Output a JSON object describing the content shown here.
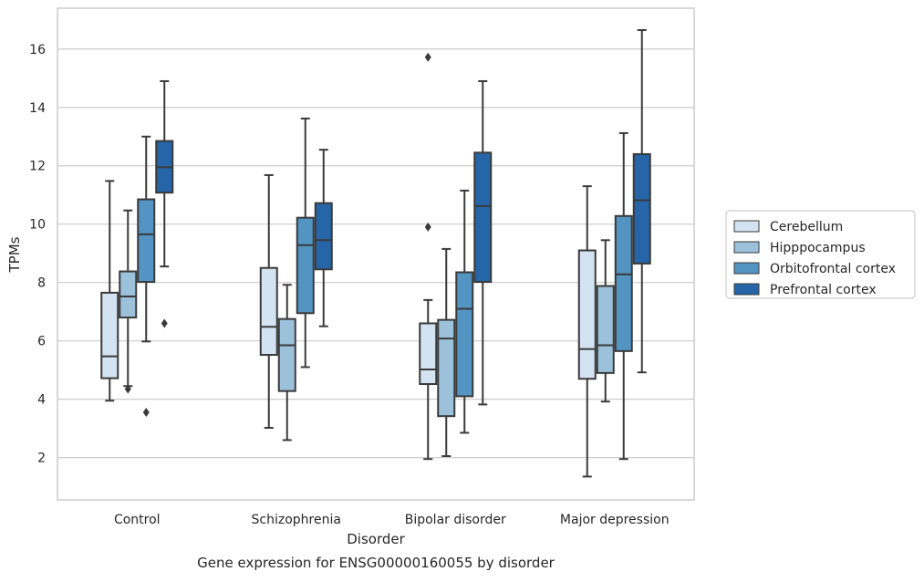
{
  "chart_data": {
    "type": "box",
    "title": "",
    "caption": "Gene expression for ENSG00000160055 by disorder",
    "xlabel": "Disorder",
    "ylabel": "TPMs",
    "ylim": [
      0.55,
      17.4
    ],
    "yticks": [
      2,
      4,
      6,
      8,
      10,
      12,
      14,
      16
    ],
    "grid": true,
    "legend_position": "right",
    "categories": [
      "Control",
      "Schizophrenia",
      "Bipolar disorder",
      "Major depression"
    ],
    "series": [
      {
        "name": "Cerebellum",
        "color": "#d4e3f2",
        "boxes": [
          {
            "whislo": 3.95,
            "q1": 4.72,
            "med": 5.47,
            "q3": 7.65,
            "whishi": 11.48,
            "fliers": []
          },
          {
            "whislo": 3.02,
            "q1": 5.52,
            "med": 6.48,
            "q3": 8.5,
            "whishi": 11.68,
            "fliers": []
          },
          {
            "whislo": 1.95,
            "q1": 4.52,
            "med": 5.02,
            "q3": 6.6,
            "whishi": 7.4,
            "fliers": [
              9.9,
              15.72
            ]
          },
          {
            "whislo": 1.35,
            "q1": 4.7,
            "med": 5.72,
            "q3": 9.1,
            "whishi": 11.3,
            "fliers": []
          }
        ]
      },
      {
        "name": "Hipppocampus",
        "color": "#9cc1db",
        "boxes": [
          {
            "whislo": 4.45,
            "q1": 6.8,
            "med": 7.52,
            "q3": 8.38,
            "whishi": 10.47,
            "fliers": [
              4.35
            ]
          },
          {
            "whislo": 2.6,
            "q1": 4.28,
            "med": 5.85,
            "q3": 6.75,
            "whishi": 7.92,
            "fliers": []
          },
          {
            "whislo": 2.05,
            "q1": 3.42,
            "med": 6.08,
            "q3": 6.72,
            "whishi": 9.15,
            "fliers": []
          },
          {
            "whislo": 3.92,
            "q1": 4.9,
            "med": 5.85,
            "q3": 7.88,
            "whishi": 9.45,
            "fliers": []
          }
        ]
      },
      {
        "name": "Orbitofrontal cortex",
        "color": "#5394c3",
        "boxes": [
          {
            "whislo": 5.98,
            "q1": 8.02,
            "med": 9.65,
            "q3": 10.85,
            "whishi": 13.0,
            "fliers": [
              3.55
            ]
          },
          {
            "whislo": 5.1,
            "q1": 6.95,
            "med": 9.28,
            "q3": 10.22,
            "whishi": 13.62,
            "fliers": []
          },
          {
            "whislo": 2.85,
            "q1": 4.1,
            "med": 7.1,
            "q3": 8.35,
            "whishi": 11.15,
            "fliers": []
          },
          {
            "whislo": 1.95,
            "q1": 5.65,
            "med": 8.28,
            "q3": 10.28,
            "whishi": 13.12,
            "fliers": []
          }
        ]
      },
      {
        "name": "Prefrontal cortex",
        "color": "#2565a8",
        "boxes": [
          {
            "whislo": 8.55,
            "q1": 11.08,
            "med": 11.95,
            "q3": 12.85,
            "whishi": 14.9,
            "fliers": [
              6.6
            ]
          },
          {
            "whislo": 6.5,
            "q1": 8.45,
            "med": 9.45,
            "q3": 10.72,
            "whishi": 12.55,
            "fliers": []
          },
          {
            "whislo": 3.82,
            "q1": 8.02,
            "med": 10.62,
            "q3": 12.45,
            "whishi": 14.9,
            "fliers": []
          },
          {
            "whislo": 4.92,
            "q1": 8.65,
            "med": 10.82,
            "q3": 12.4,
            "whishi": 16.65,
            "fliers": []
          }
        ]
      }
    ]
  }
}
